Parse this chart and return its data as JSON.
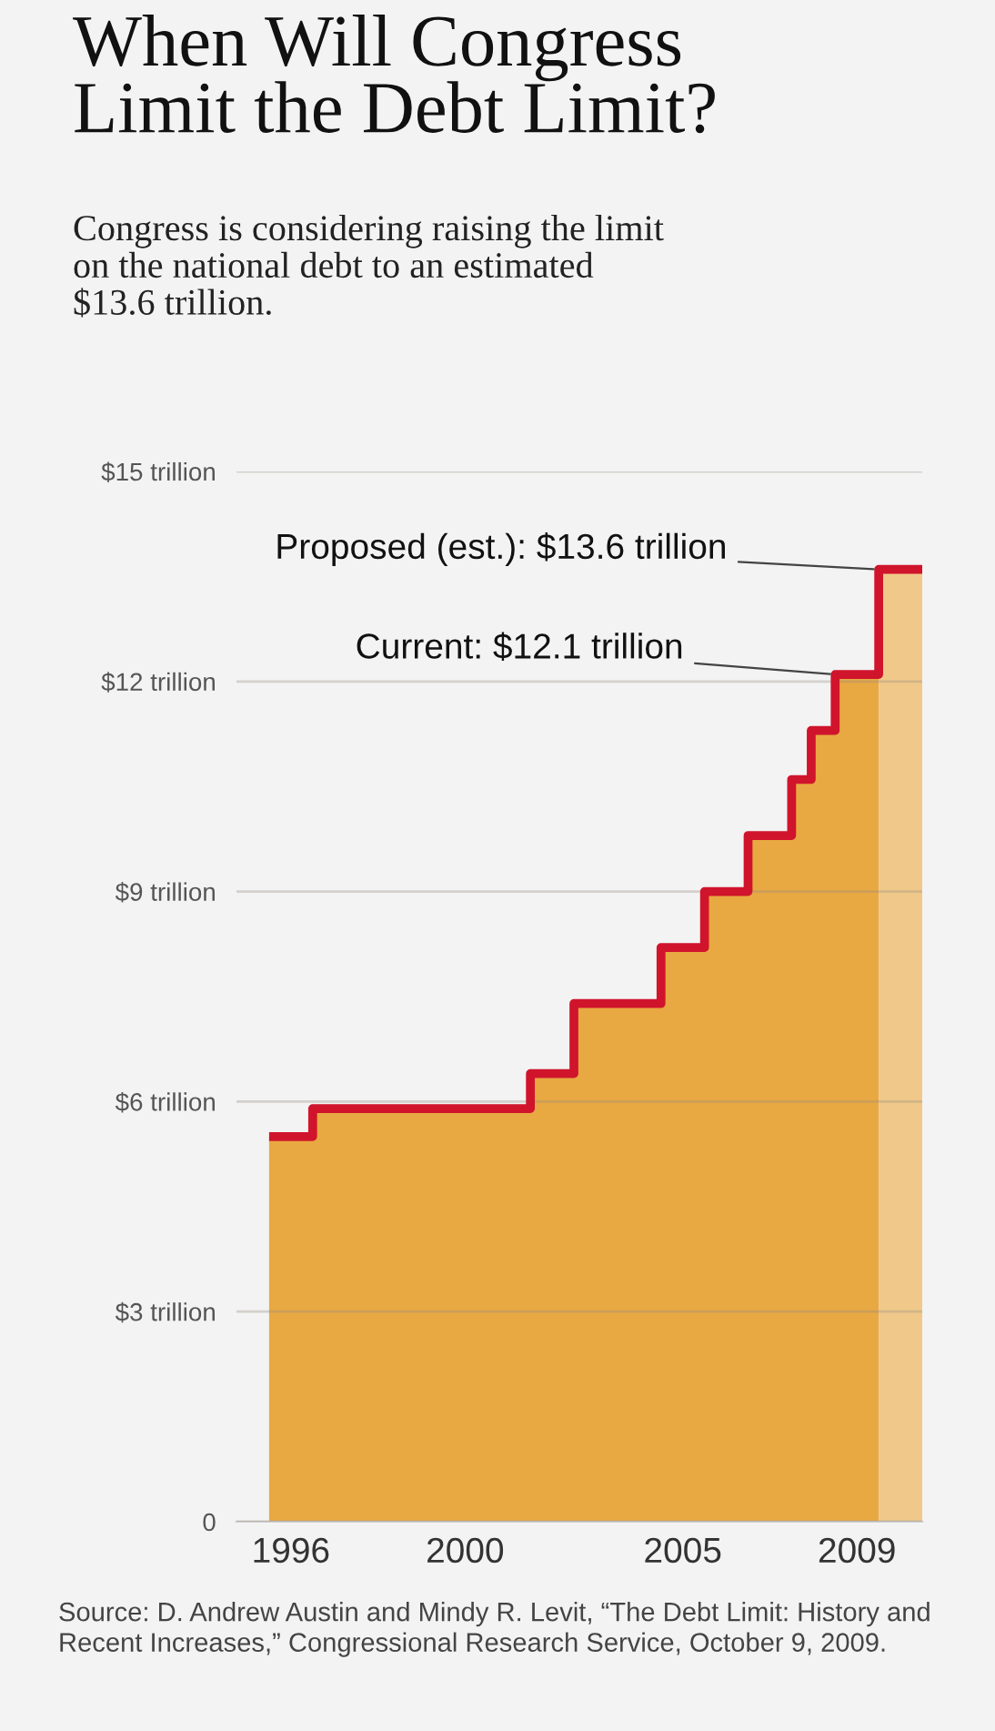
{
  "chart_data": {
    "type": "area",
    "title": "When Will Congress\nLimit the Debt Limit?",
    "subtitle": "Congress is considering raising the limit\non the national debt to an estimated\n$13.6 trillion.",
    "series": [
      {
        "color": "#e8a842",
        "x": [
          1996,
          1997,
          2002,
          2003,
          2005,
          2006,
          2007,
          2008,
          2008.45,
          2009,
          2010
        ],
        "values": [
          5.5,
          5.9,
          6.4,
          7.4,
          8.2,
          9.0,
          9.8,
          10.6,
          11.3,
          12.1,
          12.1
        ]
      },
      {
        "color": "#f0c98a",
        "x": [
          2010,
          2011
        ],
        "values": [
          13.6,
          13.6
        ]
      },
      {
        "type": "step",
        "color": "#d0142c",
        "x": [
          1996,
          1997,
          2002,
          2003,
          2005,
          2006,
          2007,
          2008,
          2008.45,
          2009,
          2010,
          2011
        ],
        "values": [
          5.5,
          5.9,
          6.4,
          7.4,
          8.2,
          9.0,
          9.8,
          10.6,
          11.3,
          12.1,
          13.6,
          13.6
        ]
      }
    ],
    "xlim": [
      1995.25,
      2011
    ],
    "xticks": [
      {
        "value": 1996.5,
        "label": "1996"
      },
      {
        "value": 2000.5,
        "label": "2000"
      },
      {
        "value": 2005.5,
        "label": "2005"
      },
      {
        "value": 2009.5,
        "label": "2009"
      }
    ],
    "ylim": [
      0,
      15
    ],
    "yticks": [
      {
        "value": 0,
        "label": "0"
      },
      {
        "value": 3,
        "label": "$3 trillion"
      },
      {
        "value": 6,
        "label": "$6 trillion"
      },
      {
        "value": 9,
        "label": "$9 trillion"
      },
      {
        "value": 12,
        "label": "$12 trillion"
      },
      {
        "value": 15,
        "label": "$15 trillion"
      }
    ],
    "grid": "y",
    "annotations": [
      {
        "text": "Proposed (est.): $13.6 trillion",
        "x": 2010,
        "y": 13.6
      },
      {
        "text": "Current: $12.1 trillion",
        "x": 2009,
        "y": 12.1
      },
      "Source: D. Andrew Austin and Mindy R. Levit, “The Debt Limit: History and Recent Increases,” Congressional Research Service, October 9, 2009."
    ]
  }
}
